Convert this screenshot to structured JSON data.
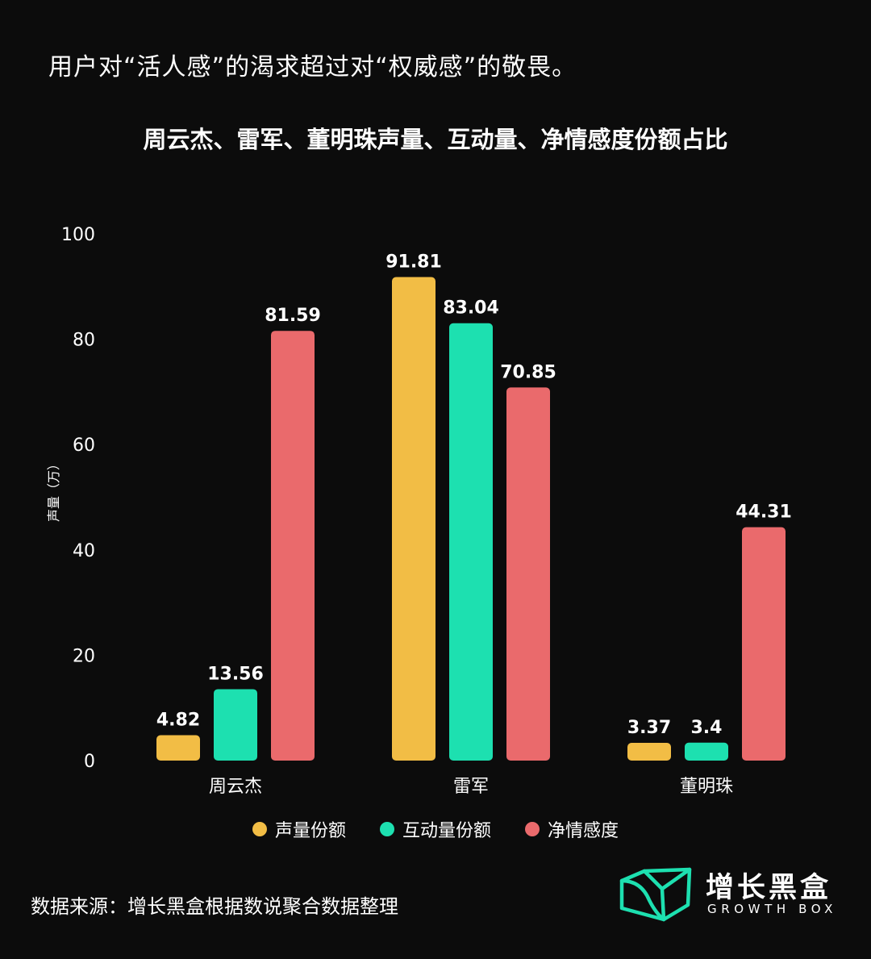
{
  "headline": "用户对“活人感”的渴求超过对“权威感”的敬畏。",
  "colors": {
    "background": "#0c0c0c",
    "text": "#ffffff",
    "brand": "#1de0b0"
  },
  "chart_data": {
    "type": "bar",
    "title": "周云杰、雷军、董明珠声量、互动量、净情感度份额占比",
    "ylabel": "声量（万）",
    "xlabel": "",
    "ylim": [
      0,
      100
    ],
    "yticks": [
      "0",
      "20",
      "40",
      "60",
      "80",
      "100"
    ],
    "grid": false,
    "legend_position": "bottom-center",
    "categories": [
      "周云杰",
      "雷军",
      "董明珠"
    ],
    "series": [
      {
        "name": "声量份额",
        "color": "#f2bd45",
        "values": [
          4.82,
          91.81,
          3.37
        ],
        "labels": [
          "4.82",
          "91.81",
          "3.37"
        ]
      },
      {
        "name": "互动量份额",
        "color": "#1de0b0",
        "values": [
          13.56,
          83.04,
          3.4
        ],
        "labels": [
          "13.56",
          "83.04",
          "3.4"
        ]
      },
      {
        "name": "净情感度",
        "color": "#ea6a6c",
        "values": [
          81.59,
          70.85,
          44.31
        ],
        "labels": [
          "81.59",
          "70.85",
          "44.31"
        ]
      }
    ]
  },
  "source": "数据来源：增长黑盒根据数说聚合数据整理",
  "logo": {
    "name_cn": "增长黑盒",
    "name_en": "GROWTH BOX"
  }
}
